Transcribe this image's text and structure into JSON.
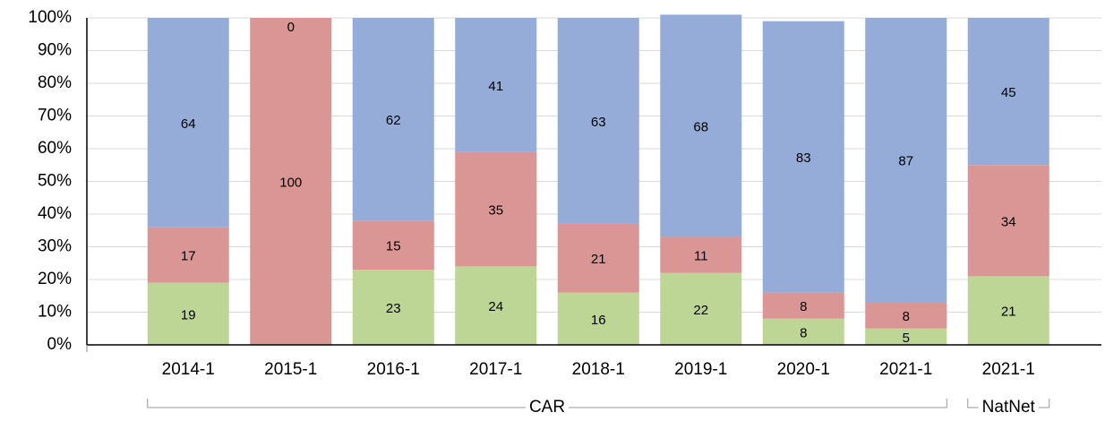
{
  "chart_data": {
    "type": "stacked_bar_percent",
    "categories": [
      "2014-1",
      "2015-1",
      "2016-1",
      "2017-1",
      "2018-1",
      "2019-1",
      "2020-1",
      "2021-1",
      "2021-1"
    ],
    "groups": [
      {
        "label": "CAR",
        "count": 8
      },
      {
        "label": "NatNet",
        "count": 1
      }
    ],
    "series": [
      {
        "color": "#bdd595",
        "values": [
          19,
          0,
          23,
          24,
          16,
          22,
          8,
          5,
          21
        ]
      },
      {
        "color": "#da9694",
        "values": [
          17,
          100,
          15,
          35,
          21,
          11,
          8,
          8,
          34
        ]
      },
      {
        "color": "#95acd8",
        "values": [
          64,
          0,
          62,
          41,
          63,
          68,
          83,
          87,
          45
        ]
      }
    ],
    "ylim": [
      0,
      100
    ],
    "yticks": [
      {
        "value": 0,
        "label": "0%"
      },
      {
        "value": 10,
        "label": "10%"
      },
      {
        "value": 20,
        "label": "20%"
      },
      {
        "value": 30,
        "label": "30%"
      },
      {
        "value": 40,
        "label": "40%"
      },
      {
        "value": 50,
        "label": "50%"
      },
      {
        "value": 60,
        "label": "60%"
      },
      {
        "value": 70,
        "label": "70%"
      },
      {
        "value": 80,
        "label": "80%"
      },
      {
        "value": 90,
        "label": "90%"
      },
      {
        "value": 100,
        "label": "100%"
      }
    ],
    "grid": true
  }
}
